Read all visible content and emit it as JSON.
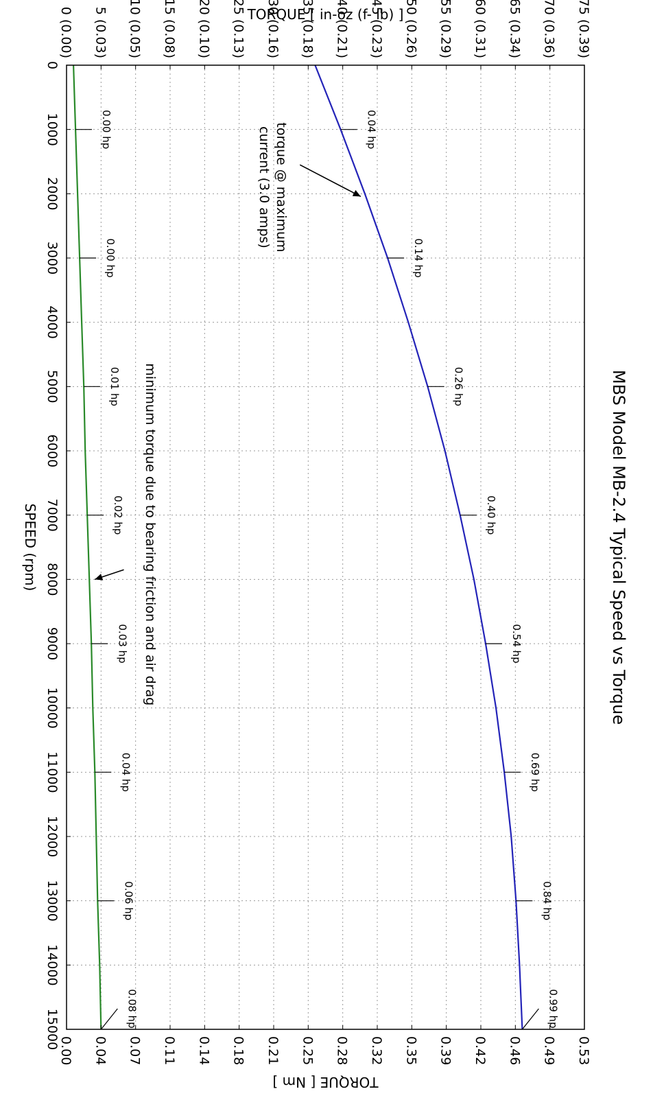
{
  "chart_data": {
    "type": "line",
    "title": "MBS Model MB-2.4 Typical Speed vs Torque",
    "xlabel": "SPEED (rpm)",
    "ylabel": "TORQUE [ in-oz (f- lb) ]",
    "y2label": "TORQUE [ Nm ]",
    "xlim": [
      0,
      15000
    ],
    "ylim": [
      0,
      75
    ],
    "grid": true,
    "x_ticks": [
      "0",
      "1000",
      "2000",
      "3000",
      "4000",
      "5000",
      "6000",
      "7000",
      "8000",
      "9000",
      "10000",
      "11000",
      "12000",
      "13000",
      "14000",
      "15000"
    ],
    "y_ticks": [
      "0 (0.00)",
      "5 (0.03)",
      "10 (0.05)",
      "15 (0.08)",
      "20 (0.10)",
      "25 (0.13)",
      "30 (0.16)",
      "35 (0.18)",
      "40 (0.21)",
      "45 (0.23)",
      "50 (0.26)",
      "55 (0.29)",
      "60 (0.31)",
      "65 (0.34)",
      "70 (0.36)",
      "75 (0.39)"
    ],
    "y2_ticks": [
      "0.00",
      "0.04",
      "0.07",
      "0.11",
      "0.14",
      "0.18",
      "0.21",
      "0.25",
      "0.28",
      "0.32",
      "0.35",
      "0.39",
      "0.42",
      "0.46",
      "0.49",
      "0.53"
    ],
    "series": [
      {
        "color": "#2424b8",
        "x": [
          0,
          1000,
          2000,
          3000,
          4000,
          5000,
          6000,
          7000,
          8000,
          9000,
          10000,
          11000,
          12000,
          13000,
          14000,
          15000
        ],
        "y": [
          36.0,
          39.7,
          43.2,
          46.5,
          49.5,
          52.3,
          54.8,
          57.0,
          59.0,
          60.7,
          62.2,
          63.4,
          64.4,
          65.1,
          65.6,
          66.0
        ]
      },
      {
        "color": "#2a8a2a",
        "x": [
          0,
          1000,
          2000,
          3000,
          4000,
          5000,
          6000,
          7000,
          8000,
          9000,
          10000,
          11000,
          12000,
          13000,
          14000,
          15000
        ],
        "y": [
          1.0,
          1.3,
          1.6,
          1.9,
          2.2,
          2.5,
          2.7,
          3.0,
          3.3,
          3.6,
          3.8,
          4.1,
          4.3,
          4.5,
          4.8,
          5.0
        ]
      }
    ],
    "hp_labels": [
      {
        "series": 0,
        "x": 1000,
        "text": "0.04 hp"
      },
      {
        "series": 0,
        "x": 3000,
        "text": "0.14 hp"
      },
      {
        "series": 0,
        "x": 5000,
        "text": "0.26 hp"
      },
      {
        "series": 0,
        "x": 7000,
        "text": "0.40 hp"
      },
      {
        "series": 0,
        "x": 9000,
        "text": "0.54 hp"
      },
      {
        "series": 0,
        "x": 11000,
        "text": "0.69 hp"
      },
      {
        "series": 0,
        "x": 13000,
        "text": "0.84 hp"
      },
      {
        "series": 0,
        "x": 15000,
        "text": "0.99 hp"
      },
      {
        "series": 1,
        "x": 1000,
        "text": "0.00 hp"
      },
      {
        "series": 1,
        "x": 3000,
        "text": "0.00 hp"
      },
      {
        "series": 1,
        "x": 5000,
        "text": "0.01 hp"
      },
      {
        "series": 1,
        "x": 7000,
        "text": "0.02 hp"
      },
      {
        "series": 1,
        "x": 9000,
        "text": "0.03 hp"
      },
      {
        "series": 1,
        "x": 11000,
        "text": "0.04 hp"
      },
      {
        "series": 1,
        "x": 13000,
        "text": "0.06 hp"
      },
      {
        "series": 1,
        "x": 15000,
        "text": "0.08 hp"
      }
    ],
    "annotations": [
      {
        "lines": [
          "torque @ maximum",
          "current (3.0 amps)"
        ],
        "arrow_to": {
          "x": 2000,
          "y": 43.2
        }
      },
      {
        "lines": [
          "minimum torque due to bearing friction and air drag"
        ],
        "arrow_to": {
          "x": 8000,
          "y": 3.3
        }
      }
    ]
  }
}
